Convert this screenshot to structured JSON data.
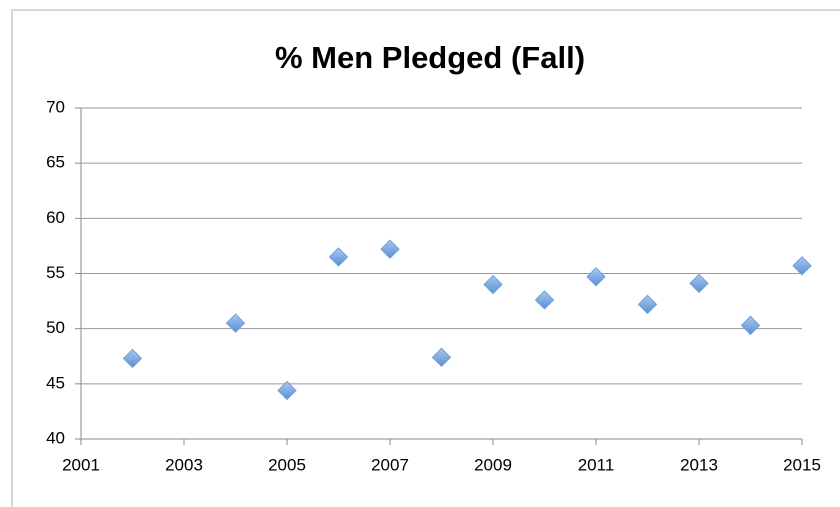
{
  "chart_data": {
    "type": "scatter",
    "title": "% Men Pledged (Fall)",
    "x": [
      2002,
      2004,
      2005,
      2006,
      2007,
      2008,
      2009,
      2010,
      2011,
      2012,
      2013,
      2014,
      2015
    ],
    "series": [
      {
        "color": "#6f9fd8",
        "values": [
          47.3,
          50.5,
          44.4,
          56.5,
          57.2,
          47.4,
          54.0,
          52.6,
          54.7,
          52.2,
          54.1,
          50.3,
          55.7
        ]
      }
    ],
    "xlim": [
      2001,
      2015
    ],
    "xticks": [
      2001,
      2003,
      2005,
      2007,
      2009,
      2011,
      2013,
      2015
    ],
    "ylim": [
      40,
      70
    ],
    "yticks": [
      40,
      45,
      50,
      55,
      60,
      65,
      70
    ],
    "grid": true
  }
}
